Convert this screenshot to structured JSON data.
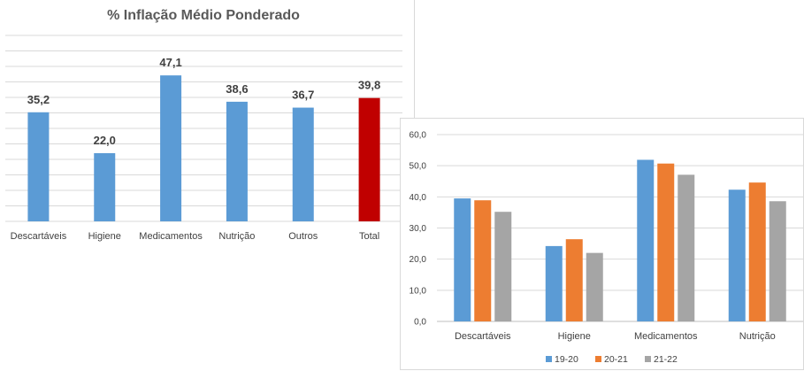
{
  "chart_data": [
    {
      "type": "bar",
      "title": "% Inflação Médio Ponderado",
      "categories": [
        "Descartáveis",
        "Higiene",
        "Medicamentos",
        "Nutrição",
        "Outros",
        "Total"
      ],
      "values": [
        35.2,
        22.0,
        47.1,
        38.6,
        36.7,
        39.8
      ],
      "data_labels": [
        "35,2",
        "22,0",
        "47,1",
        "38,6",
        "36,7",
        "39,8"
      ],
      "colors": [
        "#5b9bd5",
        "#5b9bd5",
        "#5b9bd5",
        "#5b9bd5",
        "#5b9bd5",
        "#c00000"
      ],
      "ylim": [
        0,
        60
      ],
      "grid": true,
      "legend": "none"
    },
    {
      "type": "bar",
      "categories": [
        "Descartáveis",
        "Higiene",
        "Medicamentos",
        "Nutrição"
      ],
      "series": [
        {
          "name": "19-20",
          "color": "#5b9bd5",
          "values": [
            39.5,
            24.2,
            51.9,
            42.3
          ]
        },
        {
          "name": "20-21",
          "color": "#ed7d31",
          "values": [
            38.9,
            26.4,
            50.7,
            44.6
          ]
        },
        {
          "name": "21-22",
          "color": "#a5a5a5",
          "values": [
            35.2,
            22.0,
            47.1,
            38.6
          ]
        }
      ],
      "ylim": [
        0,
        60
      ],
      "yticks": [
        "0,0",
        "10,0",
        "20,0",
        "30,0",
        "40,0",
        "50,0",
        "60,0"
      ],
      "grid": true,
      "legend": "bottom"
    }
  ]
}
